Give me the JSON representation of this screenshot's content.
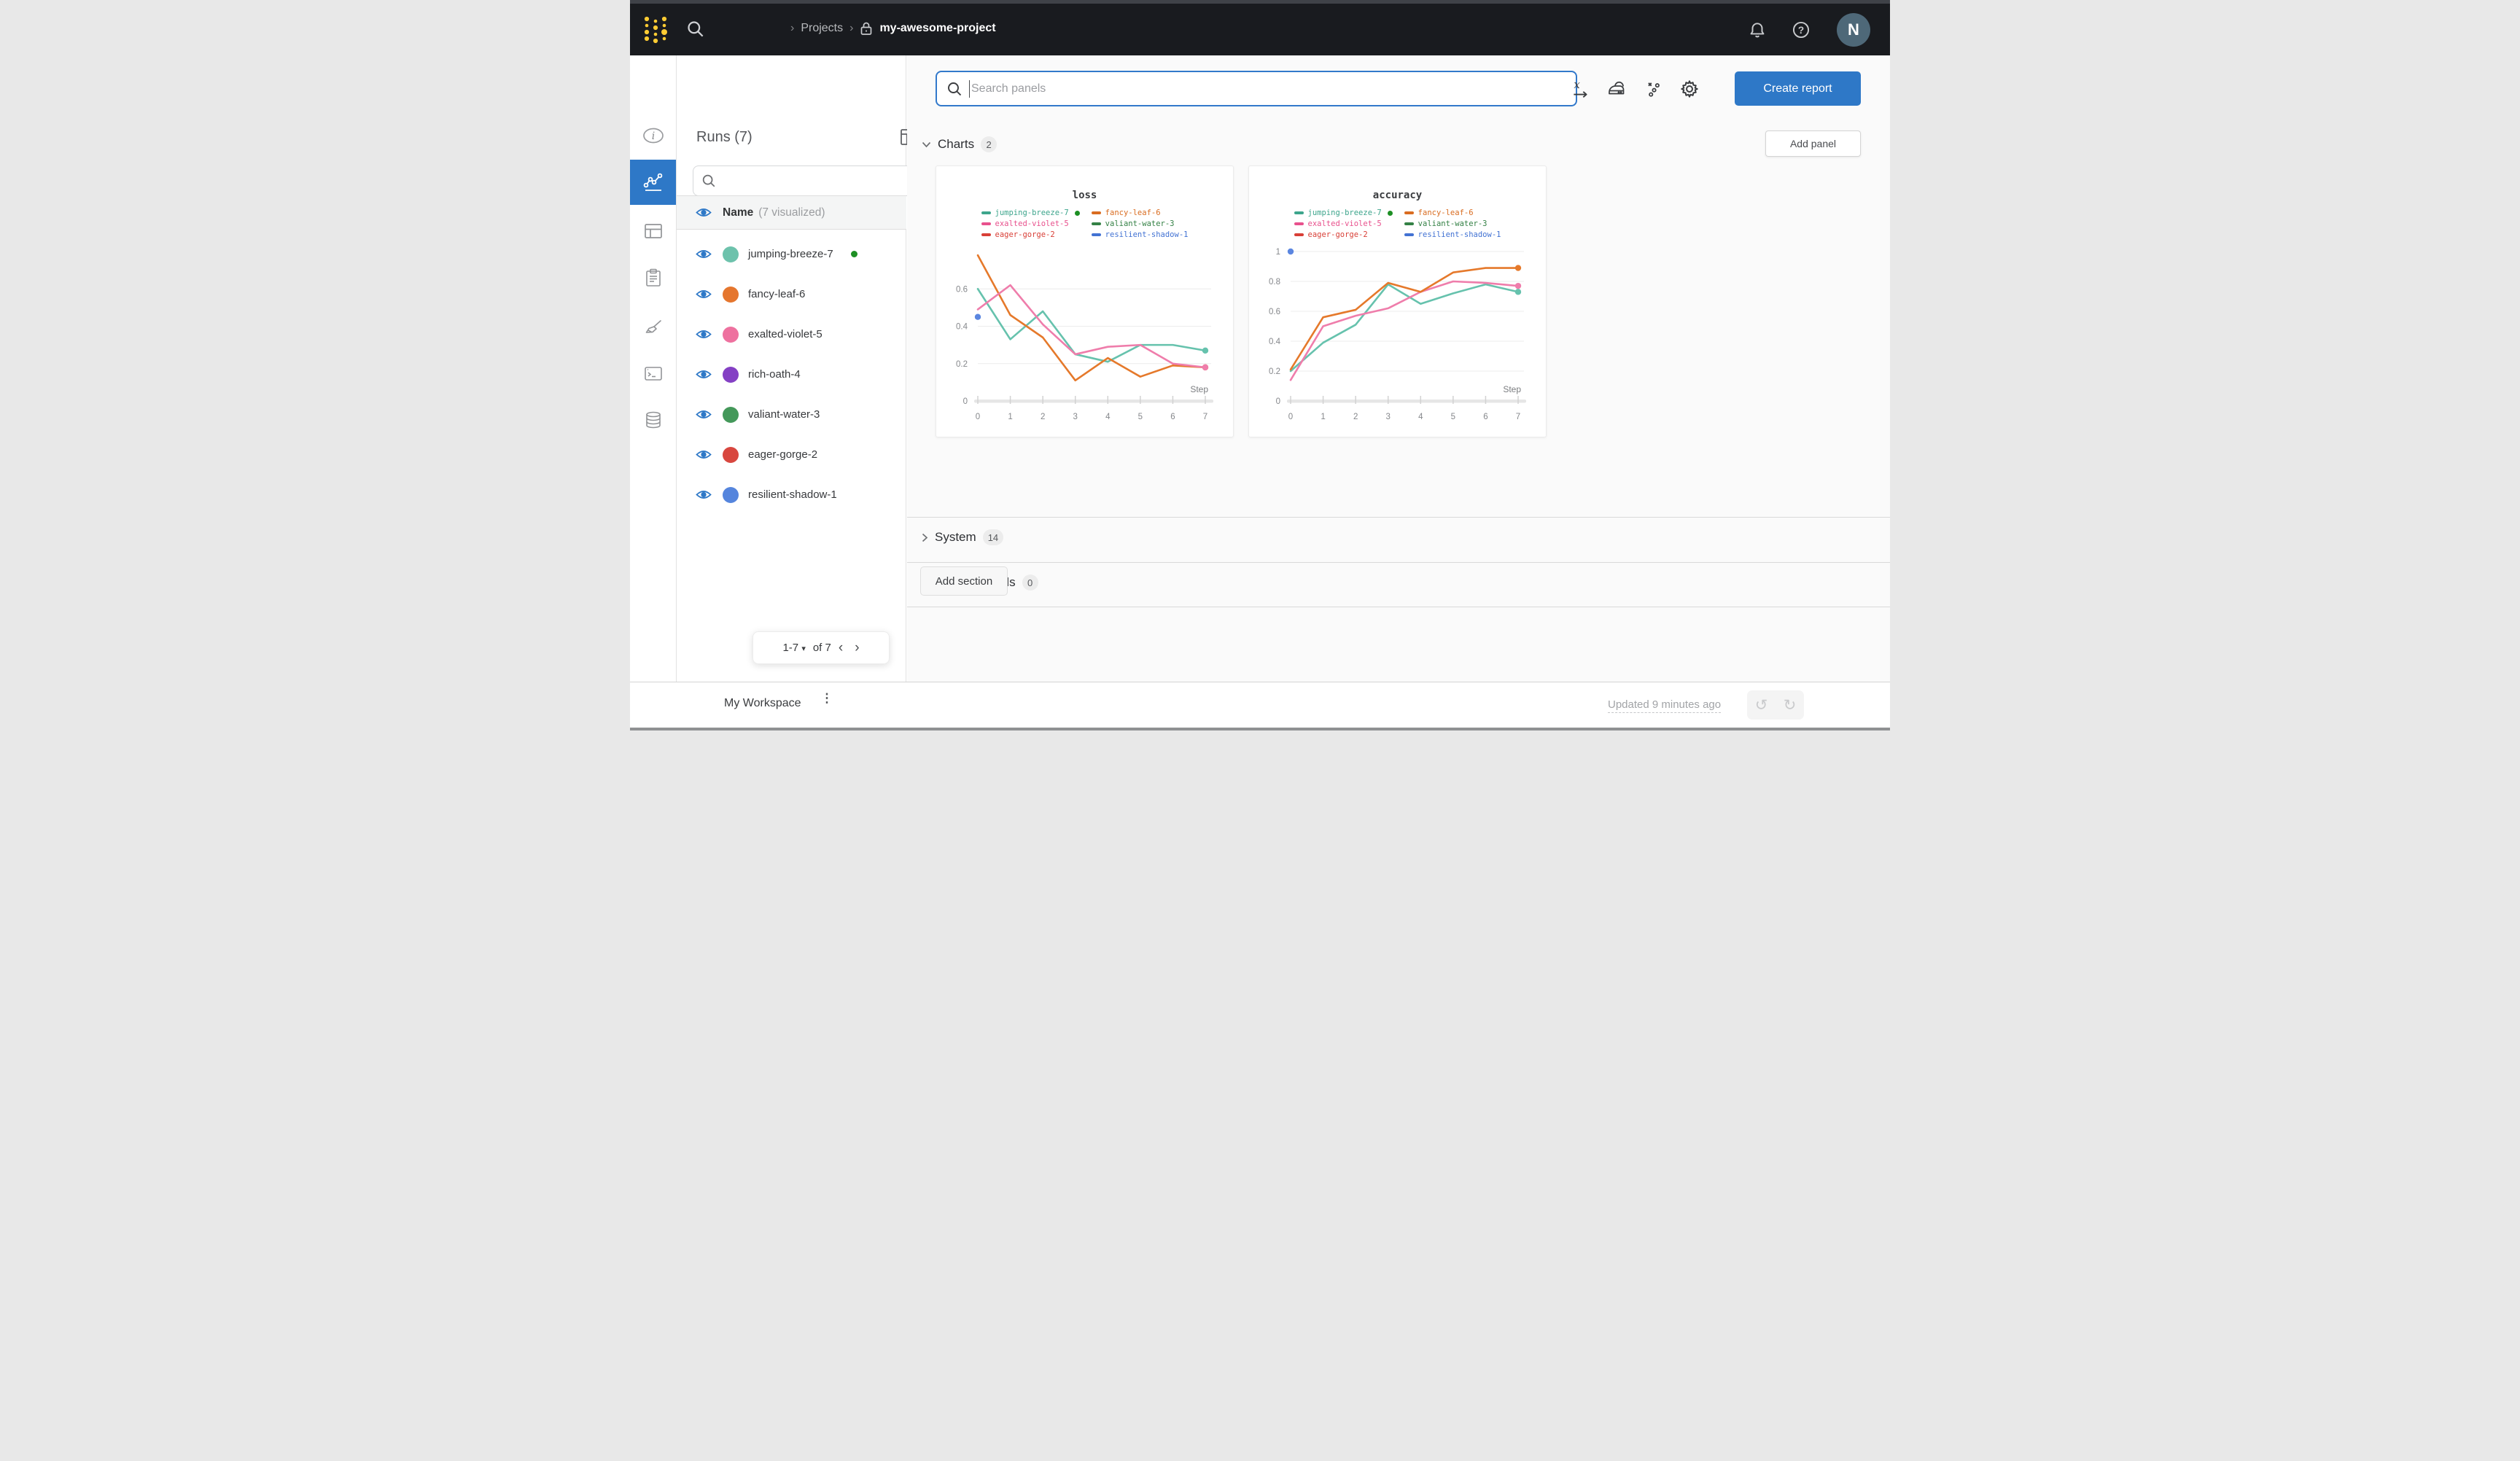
{
  "colors": {
    "accent_blue": "#2e78c7",
    "navbar_bg": "#191b1f",
    "logo_yellow": "#ffcc33",
    "running_green": "#1d8f24",
    "regex_teal": "#12969e"
  },
  "navbar": {
    "breadcrumb": {
      "sep": "›",
      "projects": "Projects",
      "project": "my-awesome-project"
    },
    "avatar_initial": "N"
  },
  "runs_panel": {
    "title": "Runs (7)",
    "search_value": "",
    "regex_glyph": ".*",
    "header_name": "Name",
    "header_visualized": "(7 visualized)",
    "items": [
      {
        "name": "jumping-breeze-7",
        "color": "#6dc2ac",
        "running": true
      },
      {
        "name": "fancy-leaf-6",
        "color": "#e5762e",
        "running": false
      },
      {
        "name": "exalted-violet-5",
        "color": "#ee719f",
        "running": false
      },
      {
        "name": "rich-oath-4",
        "color": "#8440c4",
        "running": false
      },
      {
        "name": "valiant-water-3",
        "color": "#44985a",
        "running": false
      },
      {
        "name": "eager-gorge-2",
        "color": "#d8473f",
        "running": false
      },
      {
        "name": "resilient-shadow-1",
        "color": "#5585dd",
        "running": false
      }
    ],
    "pagination": {
      "range": "1-7",
      "caret": "▾",
      "of": "of 7",
      "prev": "‹",
      "next": "›"
    }
  },
  "main": {
    "search_placeholder": "Search panels",
    "create_report": "Create report",
    "sections": {
      "charts": {
        "label": "Charts",
        "count": "2",
        "add_panel": "Add panel"
      },
      "system": {
        "label": "System",
        "count": "14"
      },
      "hidden": {
        "label": "Hidden Panels",
        "count": "0"
      },
      "add_section": "Add section"
    }
  },
  "footer": {
    "workspace": "My Workspace",
    "kebab": "⋮",
    "updated": "Updated 9 minutes ago",
    "undo": "↺",
    "redo": "↻"
  },
  "chart_data": [
    {
      "type": "line",
      "title": "loss",
      "xlabel": "Step",
      "x": [
        0,
        1,
        2,
        3,
        4,
        5,
        6,
        7
      ],
      "xticks": [
        "0",
        "1",
        "2",
        "3",
        "4",
        "5",
        "6",
        "7"
      ],
      "ylim": [
        0,
        0.8
      ],
      "yticks": [
        [
          0,
          "0"
        ],
        [
          0.2,
          "0.2"
        ],
        [
          0.4,
          "0.4"
        ],
        [
          0.6,
          "0.6"
        ]
      ],
      "grid": true,
      "legend_position": "top",
      "legend": [
        {
          "name": "jumping-breeze-7",
          "color": "#3da58c",
          "running_dot": true
        },
        {
          "name": "fancy-leaf-6",
          "color": "#d96c20",
          "running_dot": false
        },
        {
          "name": "exalted-violet-5",
          "color": "#e8518d",
          "running_dot": false
        },
        {
          "name": "valiant-water-3",
          "color": "#348145",
          "running_dot": false
        },
        {
          "name": "eager-gorge-2",
          "color": "#d83f37",
          "running_dot": false
        },
        {
          "name": "resilient-shadow-1",
          "color": "#4272d3",
          "running_dot": false
        }
      ],
      "series": [
        {
          "name": "jumping-breeze-7",
          "color": "#66c2ad",
          "values": [
            0.6,
            0.33,
            0.48,
            0.25,
            0.21,
            0.3,
            0.3,
            0.27
          ],
          "end_dot": true
        },
        {
          "name": "fancy-leaf-6",
          "color": "#e5792b",
          "values": [
            0.78,
            0.46,
            0.34,
            0.11,
            0.23,
            0.13,
            0.19,
            0.18
          ],
          "end_dot": true
        },
        {
          "name": "exalted-violet-5",
          "color": "#ef7dab",
          "values": [
            0.49,
            0.62,
            0.41,
            0.25,
            0.29,
            0.3,
            0.2,
            0.18
          ],
          "end_dot": true
        },
        {
          "name": "resilient-shadow-1",
          "color": "#5b86e0",
          "points": [
            [
              0,
              0.45
            ]
          ]
        }
      ]
    },
    {
      "type": "line",
      "title": "accuracy",
      "xlabel": "Step",
      "x": [
        0,
        1,
        2,
        3,
        4,
        5,
        6,
        7
      ],
      "xticks": [
        "0",
        "1",
        "2",
        "3",
        "4",
        "5",
        "6",
        "7"
      ],
      "ylim": [
        0,
        1.0
      ],
      "yticks": [
        [
          0,
          "0"
        ],
        [
          0.2,
          "0.2"
        ],
        [
          0.4,
          "0.4"
        ],
        [
          0.6,
          "0.6"
        ],
        [
          0.8,
          "0.8"
        ],
        [
          1,
          "1"
        ]
      ],
      "grid": true,
      "legend_position": "top",
      "legend": [
        {
          "name": "jumping-breeze-7",
          "color": "#3da58c",
          "running_dot": true
        },
        {
          "name": "fancy-leaf-6",
          "color": "#d96c20",
          "running_dot": false
        },
        {
          "name": "exalted-violet-5",
          "color": "#e8518d",
          "running_dot": false
        },
        {
          "name": "valiant-water-3",
          "color": "#348145",
          "running_dot": false
        },
        {
          "name": "eager-gorge-2",
          "color": "#d83f37",
          "running_dot": false
        },
        {
          "name": "resilient-shadow-1",
          "color": "#4272d3",
          "running_dot": false
        }
      ],
      "series": [
        {
          "name": "jumping-breeze-7",
          "color": "#66c2ad",
          "values": [
            0.2,
            0.39,
            0.51,
            0.78,
            0.65,
            0.72,
            0.78,
            0.73
          ],
          "end_dot": true
        },
        {
          "name": "exalted-violet-5",
          "color": "#ef7dab",
          "values": [
            0.14,
            0.5,
            0.57,
            0.62,
            0.73,
            0.8,
            0.79,
            0.77
          ],
          "end_dot": true
        },
        {
          "name": "fancy-leaf-6",
          "color": "#e5792b",
          "values": [
            0.21,
            0.56,
            0.61,
            0.79,
            0.73,
            0.86,
            0.89,
            0.89
          ],
          "end_dot": true
        },
        {
          "name": "resilient-shadow-1",
          "color": "#5b86e0",
          "points": [
            [
              0,
              1.0
            ]
          ]
        }
      ]
    }
  ]
}
